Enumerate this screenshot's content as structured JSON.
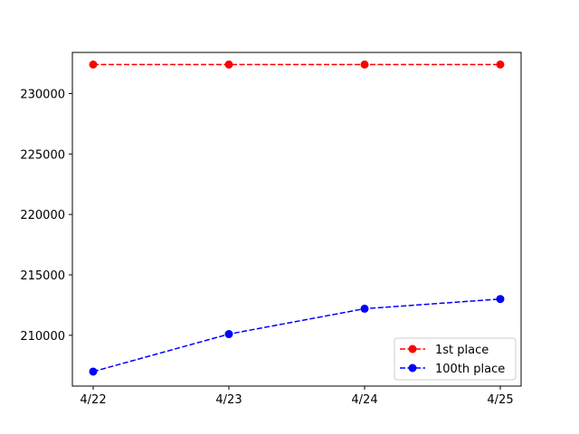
{
  "chart_data": {
    "type": "line",
    "title": "",
    "xlabel": "",
    "ylabel": "",
    "categories": [
      "4/22",
      "4/23",
      "4/24",
      "4/25"
    ],
    "ylim": [
      205800,
      233400
    ],
    "yticks": [
      210000,
      215000,
      220000,
      225000,
      230000
    ],
    "grid": false,
    "legend_position": "lower right",
    "series": [
      {
        "name": "1st place",
        "color": "#ff0000",
        "line_style": "dashed",
        "marker": "circle",
        "values": [
          232400,
          232400,
          232400,
          232400
        ]
      },
      {
        "name": "100th place",
        "color": "#0000ff",
        "line_style": "dashed",
        "marker": "circle",
        "values": [
          207000,
          210100,
          212200,
          213000
        ]
      }
    ]
  }
}
